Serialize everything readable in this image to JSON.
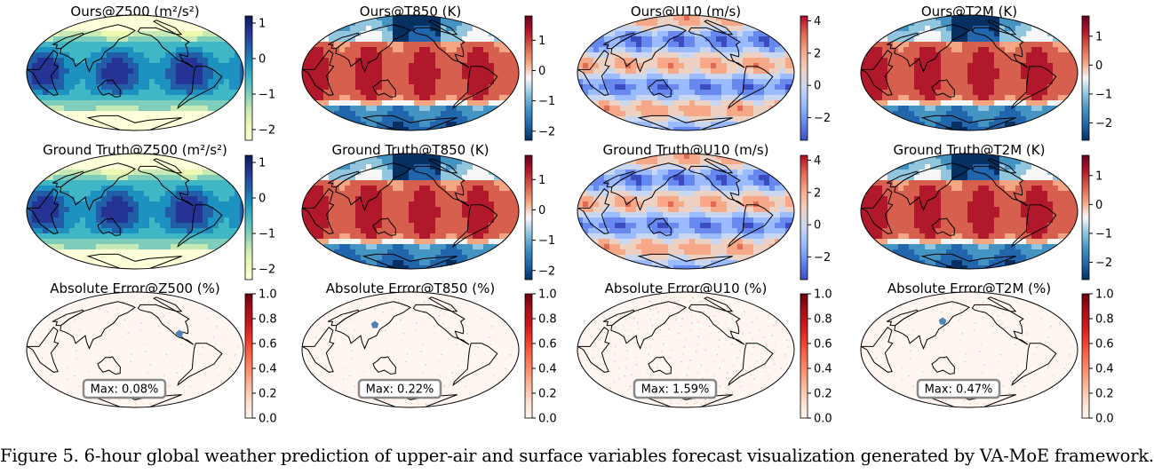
{
  "colors": {
    "ygb": [
      "#ffffd9",
      "#edf8b1",
      "#c7e9b4",
      "#7fcdbb",
      "#41b6c4",
      "#1d91c0",
      "#225ea8",
      "#253494",
      "#081d58"
    ],
    "rdbu": [
      "#053061",
      "#2166ac",
      "#4393c3",
      "#92c5de",
      "#f7f7f7",
      "#f4a582",
      "#d6604d",
      "#b2182b",
      "#67001f"
    ],
    "coolwarm": [
      "#3b4cc0",
      "#6788ee",
      "#9abbff",
      "#c9d7f0",
      "#edd1c2",
      "#f7a889",
      "#e26952",
      "#b40426"
    ],
    "reds": [
      "#fff5f0",
      "#fee0d2",
      "#fcbba1",
      "#fc9272",
      "#fb6a4a",
      "#ef3b2c",
      "#cb181d",
      "#a50f15",
      "#67000d"
    ],
    "marker": "#4f83b5",
    "coast": "#000000"
  },
  "rows": [
    {
      "row": "prediction",
      "panels": [
        {
          "title": "Ours@Z500 (m²/s²)",
          "colormap": "ygb",
          "cbar_range": [
            -2.3,
            1.2
          ],
          "ticks": [
            "1",
            "0",
            "−1",
            "−2"
          ],
          "tick_values": [
            1,
            0,
            -1,
            -2
          ]
        },
        {
          "title": "Ours@T850 (K)",
          "colormap": "rdbu",
          "cbar_range": [
            -2.3,
            1.8
          ],
          "ticks": [
            "1",
            "0",
            "−1",
            "−2"
          ],
          "tick_values": [
            1,
            0,
            -1,
            -2
          ]
        },
        {
          "title": "Ours@U10 (m/s)",
          "colormap": "coolwarm",
          "cbar_range": [
            -3.4,
            4.3
          ],
          "ticks": [
            "4",
            "2",
            "0",
            "−2"
          ],
          "tick_values": [
            4,
            2,
            0,
            -2
          ]
        },
        {
          "title": "Ours@T2M (K)",
          "colormap": "rdbu",
          "cbar_range": [
            -2.6,
            1.7
          ],
          "ticks": [
            "1",
            "0",
            "−1",
            "−2"
          ],
          "tick_values": [
            1,
            0,
            -1,
            -2
          ]
        }
      ]
    },
    {
      "row": "ground_truth",
      "panels": [
        {
          "title": "Ground Truth@Z500 (m²/s²)",
          "colormap": "ygb",
          "cbar_range": [
            -2.3,
            1.2
          ],
          "ticks": [
            "1",
            "0",
            "−1",
            "−2"
          ],
          "tick_values": [
            1,
            0,
            -1,
            -2
          ]
        },
        {
          "title": "Ground Truth@T850 (K)",
          "colormap": "rdbu",
          "cbar_range": [
            -2.3,
            1.8
          ],
          "ticks": [
            "1",
            "0",
            "−1",
            "−2"
          ],
          "tick_values": [
            1,
            0,
            -1,
            -2
          ]
        },
        {
          "title": "Ground Truth@U10 (m/s)",
          "colormap": "coolwarm",
          "cbar_range": [
            -3.4,
            4.3
          ],
          "ticks": [
            "4",
            "2",
            "0",
            "−2"
          ],
          "tick_values": [
            4,
            2,
            0,
            -2
          ]
        },
        {
          "title": "Ground Truth@T2M (K)",
          "colormap": "rdbu",
          "cbar_range": [
            -2.6,
            1.7
          ],
          "ticks": [
            "1",
            "0",
            "−1",
            "−2"
          ],
          "tick_values": [
            1,
            0,
            -1,
            -2
          ]
        }
      ]
    },
    {
      "row": "absolute_error",
      "panels": [
        {
          "title": "Absolute Error@Z500 (%)",
          "colormap": "reds",
          "cbar_range": [
            0,
            1
          ],
          "ticks": [
            "1.0",
            "0.8",
            "0.6",
            "0.4",
            "0.2",
            "0.0"
          ],
          "tick_values": [
            1,
            0.8,
            0.6,
            0.4,
            0.2,
            0
          ],
          "max_label": "Max: 0.08%"
        },
        {
          "title": "Absolute Error@T850 (%)",
          "colormap": "reds",
          "cbar_range": [
            0,
            1
          ],
          "ticks": [
            "1.0",
            "0.8",
            "0.6",
            "0.4",
            "0.2",
            "0.0"
          ],
          "tick_values": [
            1,
            0.8,
            0.6,
            0.4,
            0.2,
            0
          ],
          "max_label": "Max: 0.22%"
        },
        {
          "title": "Absolute Error@U10 (%)",
          "colormap": "reds",
          "cbar_range": [
            0,
            1
          ],
          "ticks": [
            "1.0",
            "0.8",
            "0.6",
            "0.4",
            "0.2",
            "0.0"
          ],
          "tick_values": [
            1,
            0.8,
            0.6,
            0.4,
            0.2,
            0
          ],
          "max_label": "Max: 1.59%"
        },
        {
          "title": "Absolute Error@T2M (%)",
          "colormap": "reds",
          "cbar_range": [
            0,
            1
          ],
          "ticks": [
            "1.0",
            "0.8",
            "0.6",
            "0.4",
            "0.2",
            "0.0"
          ],
          "tick_values": [
            1,
            0.8,
            0.6,
            0.4,
            0.2,
            0
          ],
          "max_label": "Max: 0.47%"
        }
      ]
    }
  ],
  "caption": "Figure 5. 6-hour global weather prediction of upper-air and surface variables forecast visualization generated by VA-MoE framework."
}
